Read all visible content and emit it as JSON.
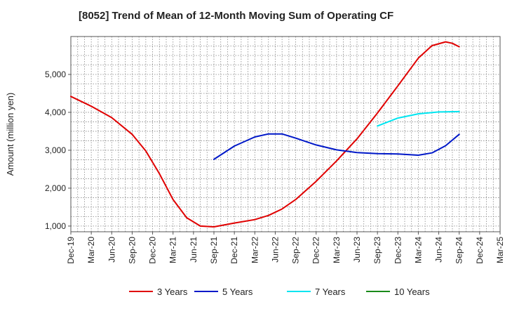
{
  "chart_data": {
    "type": "line",
    "title": "[8052]  Trend of Mean of 12-Month Moving Sum of Operating CF",
    "xlabel": "",
    "ylabel": "Amount (million yen)",
    "ylim": [
      850,
      6000
    ],
    "yticks": [
      1000,
      2000,
      3000,
      4000,
      5000
    ],
    "ytick_labels": [
      "1,000",
      "2,000",
      "3,000",
      "4,000",
      "5,000"
    ],
    "xlim": [
      "2019-12",
      "2025-03"
    ],
    "xticks": [
      "2019-12",
      "2020-03",
      "2020-06",
      "2020-09",
      "2020-12",
      "2021-03",
      "2021-06",
      "2021-09",
      "2021-12",
      "2022-03",
      "2022-06",
      "2022-09",
      "2022-12",
      "2023-03",
      "2023-06",
      "2023-09",
      "2023-12",
      "2024-03",
      "2024-06",
      "2024-09",
      "2024-12",
      "2025-03"
    ],
    "xtick_labels": [
      "Dec-19",
      "Mar-20",
      "Jun-20",
      "Sep-20",
      "Dec-20",
      "Mar-21",
      "Jun-21",
      "Sep-21",
      "Dec-21",
      "Mar-22",
      "Jun-22",
      "Sep-22",
      "Dec-22",
      "Mar-23",
      "Jun-23",
      "Sep-23",
      "Dec-23",
      "Mar-24",
      "Jun-24",
      "Sep-24",
      "Dec-24",
      "Mar-25"
    ],
    "grid": true,
    "legend_position": "bottom",
    "series": [
      {
        "name": "3 Years",
        "color": "#e00000",
        "x": [
          "2019-12",
          "2020-03",
          "2020-06",
          "2020-09",
          "2020-11",
          "2021-01",
          "2021-03",
          "2021-05",
          "2021-07",
          "2021-09",
          "2021-12",
          "2022-03",
          "2022-05",
          "2022-07",
          "2022-09",
          "2022-12",
          "2023-03",
          "2023-06",
          "2023-09",
          "2023-12",
          "2024-03",
          "2024-05",
          "2024-07",
          "2024-08",
          "2024-09"
        ],
        "values": [
          4420,
          4160,
          3860,
          3420,
          2980,
          2380,
          1700,
          1220,
          1000,
          980,
          1080,
          1170,
          1280,
          1450,
          1700,
          2180,
          2720,
          3300,
          3980,
          4700,
          5430,
          5760,
          5860,
          5820,
          5730
        ]
      },
      {
        "name": "5 Years",
        "color": "#0018c8",
        "x": [
          "2021-09",
          "2021-12",
          "2022-03",
          "2022-05",
          "2022-07",
          "2022-09",
          "2022-12",
          "2023-03",
          "2023-06",
          "2023-09",
          "2023-12",
          "2024-03",
          "2024-05",
          "2024-07",
          "2024-09"
        ],
        "values": [
          2760,
          3110,
          3350,
          3430,
          3430,
          3320,
          3140,
          3010,
          2940,
          2910,
          2900,
          2870,
          2930,
          3120,
          3420
        ]
      },
      {
        "name": "7 Years",
        "color": "#00e5f0",
        "x": [
          "2023-09",
          "2023-12",
          "2024-03",
          "2024-06",
          "2024-09"
        ],
        "values": [
          3640,
          3850,
          3960,
          4010,
          4020
        ]
      },
      {
        "name": "10 Years",
        "color": "#1a8a1a",
        "x": [],
        "values": []
      }
    ]
  }
}
